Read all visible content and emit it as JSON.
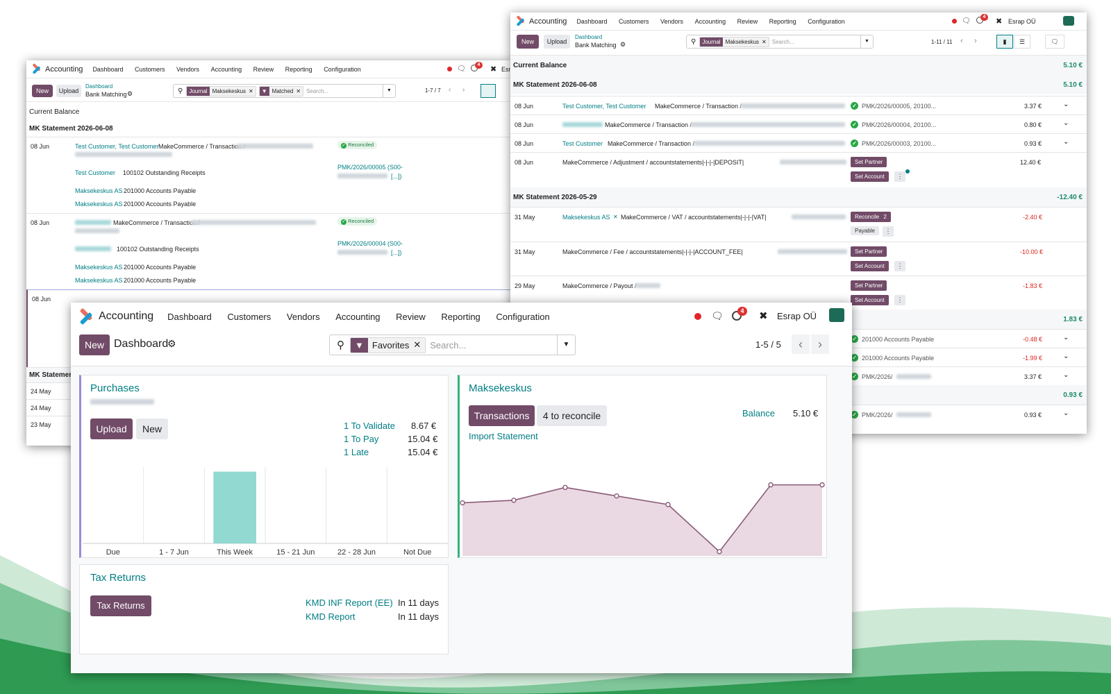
{
  "colors": {
    "brand": "#714b67",
    "teal": "#017e84",
    "positive": "#1c8a6a",
    "negative": "#d9231d"
  },
  "app_name": "Accounting",
  "menu": [
    "Dashboard",
    "Customers",
    "Vendors",
    "Accounting",
    "Review",
    "Reporting",
    "Configuration"
  ],
  "company": "Esrap OÜ",
  "activity_count": "4",
  "bank_left": {
    "new": "New",
    "upload": "Upload",
    "breadcrumb_parent": "Dashboard",
    "breadcrumb_current": "Bank Matching",
    "facets": [
      {
        "key": "Journal",
        "value": "Maksekeskus"
      },
      {
        "key": "filter-icon",
        "value": "Matched"
      }
    ],
    "search_placeholder": "Search...",
    "pager": "1-7 / 7",
    "current_balance": "Current Balance",
    "statement": "MK Statement 2026-06-08",
    "statement2": "MK Statemer",
    "entry1": {
      "date": "08 Jun",
      "partner": "Test Customer, Test Customer",
      "label": "MakeCommerce / Transaction /",
      "status": "Reconciled",
      "lines": [
        {
          "partner": "Test Customer",
          "account": "100102 Outstanding Receipts"
        },
        {
          "partner": "Maksekeskus AS",
          "account": "201000 Accounts Payable"
        },
        {
          "partner": "Maksekeskus AS",
          "account": "201000 Accounts Payable"
        }
      ],
      "ref": "PMK/2026/00005 (S00-",
      "ref_suffix": "[...])"
    },
    "entry2": {
      "date": "08 Jun",
      "label": "MakeCommerce / Transaction /",
      "status": "Reconciled",
      "lines": [
        {
          "account": "100102 Outstanding Receipts"
        },
        {
          "partner": "Maksekeskus AS",
          "account": "201000 Accounts Payable"
        },
        {
          "partner": "Maksekeskus AS",
          "account": "201000 Accounts Payable"
        }
      ],
      "ref": "PMK/2026/00004 (S00-",
      "ref_suffix": "[...])"
    },
    "entry3_date": "08 Jun",
    "bottom_dates": [
      "24 May",
      "24 May",
      "23 May"
    ]
  },
  "bank_right": {
    "new": "New",
    "upload": "Upload",
    "breadcrumb_parent": "Dashboard",
    "breadcrumb_current": "Bank Matching",
    "facet": {
      "key": "Journal",
      "value": "Maksekeskus"
    },
    "search_placeholder": "Search...",
    "pager": "1-11 / 11",
    "current_balance": {
      "label": "Current Balance",
      "amount": "5.10 €"
    },
    "stmt1": {
      "label": "MK Statement 2026-06-08",
      "amount": "5.10 €"
    },
    "rows1": [
      {
        "date": "08 Jun",
        "partner": "Test Customer, Test Customer",
        "label": "MakeCommerce / Transaction /",
        "ref": "PMK/2026/00005, 20100...",
        "amount": "3.37 €"
      },
      {
        "date": "08 Jun",
        "label": "MakeCommerce / Transaction /",
        "ref": "PMK/2026/00004, 20100...",
        "amount": "0.80 €"
      },
      {
        "date": "08 Jun",
        "partner": "Test Customer",
        "label": "MakeCommerce / Transaction /",
        "ref": "PMK/2026/00003, 20100...",
        "amount": "0.93 €"
      },
      {
        "date": "08 Jun",
        "label": "MakeCommerce / Adjustment / accountstatements|-|-|-|DEPOSIT|",
        "btn1": "Set Partner",
        "btn2": "Set Account",
        "amount": "12.40 €"
      }
    ],
    "stmt2": {
      "label": "MK Statement 2026-05-29",
      "amount": "-12.40 €"
    },
    "rows2": [
      {
        "date": "31 May",
        "partner": "Maksekeskus AS",
        "label": "MakeCommerce / VAT / accountstatements|-|-|-|VAT|",
        "btn1": "Reconcile",
        "btn1_count": "2",
        "btn2": "Payable",
        "amount": "-2.40 €"
      },
      {
        "date": "31 May",
        "label": "MakeCommerce / Fee / accountstatements|-|-|-|ACCOUNT_FEE|",
        "btn1": "Set Partner",
        "btn2": "Set Account",
        "amount": "-10.00 €"
      },
      {
        "date": "29 May",
        "label": "MakeCommerce / Payout /",
        "btn1": "Set Partner",
        "btn2": "Set Account",
        "amount": "-1.83 €"
      }
    ],
    "stmt3_amount": "1.83 €",
    "rows3": [
      {
        "ref": "201000 Accounts Payable",
        "amount": "-0.48 €"
      },
      {
        "ref": "201000 Accounts Payable",
        "amount": "-1.99 €"
      },
      {
        "ref": "PMK/2026/",
        "amount": "3.37 €"
      }
    ],
    "stmt4_amount": "0.93 €",
    "rows4": [
      {
        "ref": "PMK/2026/",
        "amount": "0.93 €"
      }
    ]
  },
  "dashboard": {
    "new": "New",
    "title": "Dashboard",
    "facet": "Favorites",
    "search_placeholder": "Search...",
    "pager": "1-5 / 5",
    "purchases": {
      "title": "Purchases",
      "upload": "Upload",
      "new": "New",
      "stats": [
        {
          "label": "1 To Validate",
          "value": "8.67 €"
        },
        {
          "label": "1 To Pay",
          "value": "15.04 €"
        },
        {
          "label": "1 Late",
          "value": "15.04 €"
        }
      ]
    },
    "maksekeskus": {
      "title": "Maksekeskus",
      "transactions": "Transactions",
      "to_reconcile": "4 to reconcile",
      "import": "Import Statement",
      "balance_label": "Balance",
      "balance_value": "5.10 €"
    },
    "tax": {
      "title": "Tax Returns",
      "button": "Tax Returns",
      "reports": [
        {
          "label": "KMD INF Report (EE)",
          "due": "In 11 days"
        },
        {
          "label": "KMD Report",
          "due": "In 11 days"
        }
      ]
    }
  },
  "chart_data": [
    {
      "type": "bar",
      "categories": [
        "Due",
        "1 - 7 Jun",
        "This Week",
        "15 - 21 Jun",
        "22 - 28 Jun",
        "Not Due"
      ],
      "values": [
        0,
        0,
        15.04,
        0,
        0,
        0
      ],
      "ylim": [
        0,
        16
      ]
    },
    {
      "type": "area",
      "x": [
        0,
        1,
        2,
        3,
        4,
        5,
        6,
        7
      ],
      "values": [
        4.2,
        4.5,
        6.0,
        5.0,
        4.0,
        -1.5,
        6.3,
        6.3
      ],
      "ylim": [
        -2,
        10
      ]
    }
  ]
}
